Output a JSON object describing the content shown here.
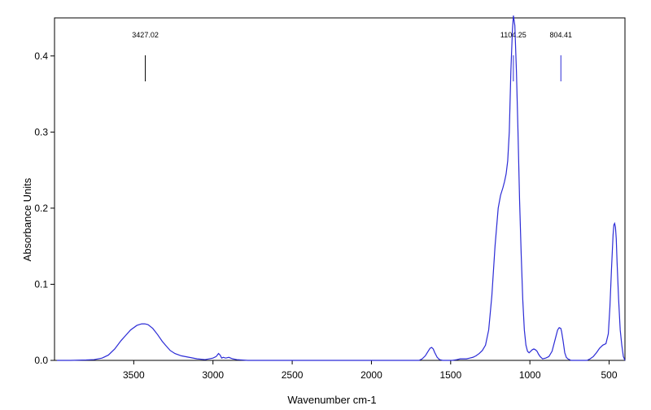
{
  "chart_data": {
    "type": "line",
    "title": "",
    "xlabel": "Wavenumber cm-1",
    "ylabel": "Absorbance Units",
    "xlim": [
      4000,
      400
    ],
    "ylim": [
      0,
      0.45
    ],
    "x_reversed": true,
    "grid": false,
    "line_color": "#2b2bd6",
    "peak_marker_colors": [
      "#000000",
      "#2b2bd6",
      "#2b2bd6"
    ],
    "x_ticks": [
      3500,
      3000,
      2500,
      2000,
      1500,
      1000,
      500
    ],
    "x_tick_labels": [
      "3500",
      "3000",
      "2500",
      "2000",
      "1500",
      "1000",
      "500"
    ],
    "y_ticks": [
      0.0,
      0.1,
      0.2,
      0.3,
      0.4
    ],
    "y_tick_labels": [
      "0.0",
      "0.1",
      "0.2",
      "0.3",
      "0.4"
    ],
    "peak_labels": [
      {
        "x": 3427.02,
        "label": "3427.02"
      },
      {
        "x": 1104.25,
        "label": "1104.25"
      },
      {
        "x": 804.41,
        "label": "804.41"
      }
    ],
    "series": [
      {
        "x": [
          3985,
          3900,
          3800,
          3750,
          3700,
          3660,
          3620,
          3580,
          3550,
          3520,
          3480,
          3450,
          3430,
          3410,
          3380,
          3350,
          3320,
          3300,
          3270,
          3240,
          3200,
          3150,
          3100,
          3050,
          3000,
          2980,
          2965,
          2955,
          2945,
          2935,
          2920,
          2900,
          2875,
          2850,
          2820,
          2780,
          2700,
          2600,
          2400,
          2360,
          2330,
          2300,
          2200,
          2000,
          1800,
          1700,
          1680,
          1660,
          1645,
          1630,
          1620,
          1610,
          1600,
          1585,
          1570,
          1550,
          1520,
          1490,
          1460,
          1440,
          1420,
          1400,
          1380,
          1360,
          1340,
          1320,
          1300,
          1280,
          1260,
          1240,
          1220,
          1200,
          1185,
          1170,
          1160,
          1150,
          1140,
          1130,
          1120,
          1110,
          1104,
          1095,
          1085,
          1075,
          1065,
          1055,
          1045,
          1035,
          1025,
          1015,
          1005,
          995,
          985,
          975,
          965,
          955,
          945,
          935,
          920,
          900,
          880,
          860,
          840,
          825,
          815,
          805,
          800,
          790,
          780,
          770,
          760,
          740,
          720,
          700,
          680,
          660,
          640,
          620,
          600,
          580,
          560,
          540,
          520,
          505,
          495,
          485,
          475,
          470,
          465,
          460,
          455,
          450,
          440,
          430,
          420,
          410,
          400
        ],
        "y": [
          0.0,
          0.0,
          0.0005,
          0.001,
          0.003,
          0.007,
          0.015,
          0.026,
          0.033,
          0.04,
          0.046,
          0.048,
          0.048,
          0.047,
          0.042,
          0.034,
          0.025,
          0.02,
          0.013,
          0.009,
          0.006,
          0.004,
          0.002,
          0.001,
          0.003,
          0.005,
          0.009,
          0.007,
          0.003,
          0.004,
          0.003,
          0.004,
          0.002,
          0.001,
          0.0005,
          0.0,
          0.0,
          0.0,
          0.0,
          0.0,
          0.0,
          0.0,
          0.0,
          0.0,
          0.0,
          0.0,
          0.002,
          0.006,
          0.011,
          0.016,
          0.017,
          0.015,
          0.01,
          0.004,
          0.001,
          0.0,
          0.0,
          0.0,
          0.001,
          0.002,
          0.002,
          0.002,
          0.003,
          0.004,
          0.006,
          0.009,
          0.013,
          0.02,
          0.04,
          0.085,
          0.15,
          0.2,
          0.217,
          0.227,
          0.235,
          0.245,
          0.262,
          0.3,
          0.38,
          0.435,
          0.453,
          0.44,
          0.38,
          0.3,
          0.21,
          0.14,
          0.08,
          0.04,
          0.02,
          0.012,
          0.01,
          0.012,
          0.014,
          0.015,
          0.014,
          0.012,
          0.008,
          0.005,
          0.002,
          0.003,
          0.005,
          0.012,
          0.028,
          0.04,
          0.043,
          0.042,
          0.038,
          0.025,
          0.01,
          0.004,
          0.002,
          0.0,
          0.0,
          0.0,
          0.0,
          0.0,
          0.0,
          0.002,
          0.005,
          0.01,
          0.016,
          0.02,
          0.022,
          0.035,
          0.07,
          0.12,
          0.165,
          0.178,
          0.18,
          0.175,
          0.16,
          0.13,
          0.08,
          0.04,
          0.02,
          0.005,
          0.0
        ]
      }
    ]
  }
}
